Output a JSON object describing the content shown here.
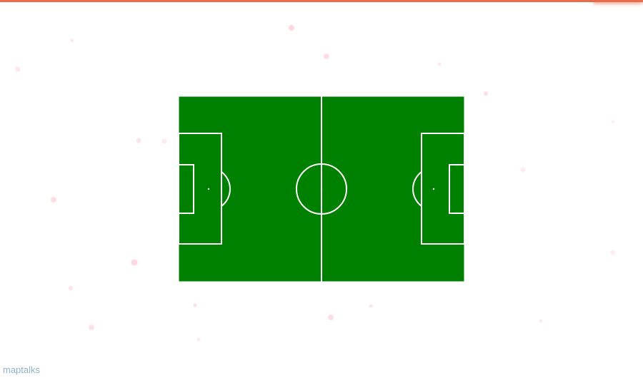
{
  "map": {
    "attribution": "maptalks",
    "colors": {
      "accent": "#ea6b48",
      "pitch_grass": "#008000",
      "pitch_lines": "#ffffff",
      "particle": "#ff8fa8",
      "attribution": "#8fb4c9"
    },
    "layers": [
      "pitch-layer",
      "particle-layer"
    ],
    "pitch_features": [
      "pitch-outline",
      "halfway-line",
      "center-circle",
      "center-spot",
      "left-penalty-area",
      "left-goal-area",
      "left-penalty-spot",
      "left-penalty-arc",
      "right-penalty-area",
      "right-goal-area",
      "right-penalty-spot",
      "right-penalty-arc"
    ]
  }
}
